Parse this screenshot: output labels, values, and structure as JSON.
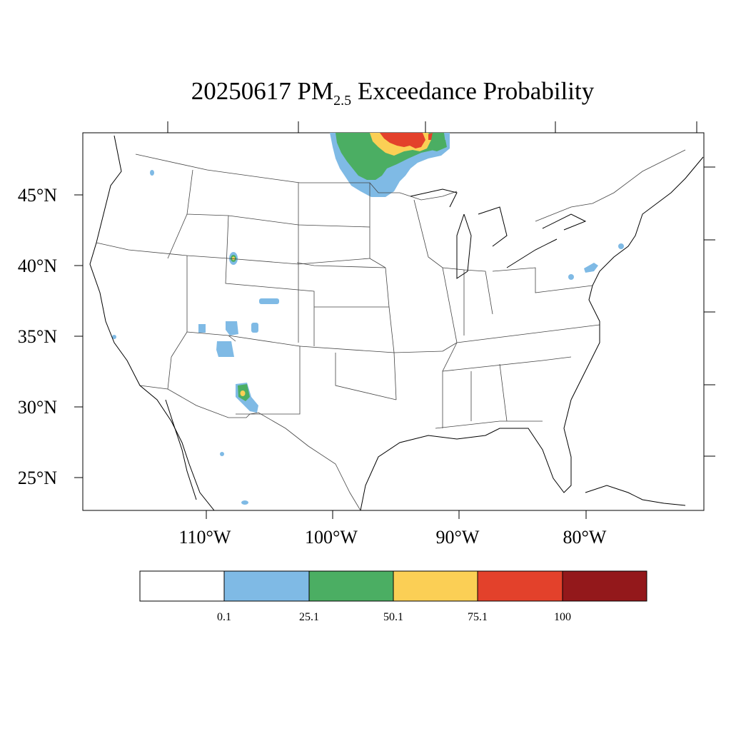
{
  "title": {
    "date": "20250617",
    "pm": "PM",
    "pm_sub": "2.5",
    "rest": "Exceedance Probability"
  },
  "map": {
    "lat_labels": [
      "45°N",
      "40°N",
      "35°N",
      "30°N",
      "25°N"
    ],
    "lon_labels": [
      "110°W",
      "100°W",
      "90°W",
      "80°W"
    ]
  },
  "colorbar": {
    "bins": [
      {
        "color": "#ffffff"
      },
      {
        "color": "#7fbae5"
      },
      {
        "color": "#4bae63"
      },
      {
        "color": "#fbcf55"
      },
      {
        "color": "#e3412b"
      },
      {
        "color": "#93181b"
      }
    ],
    "tick_labels": [
      "0.1",
      "25.1",
      "50.1",
      "75.1",
      "100"
    ]
  }
}
